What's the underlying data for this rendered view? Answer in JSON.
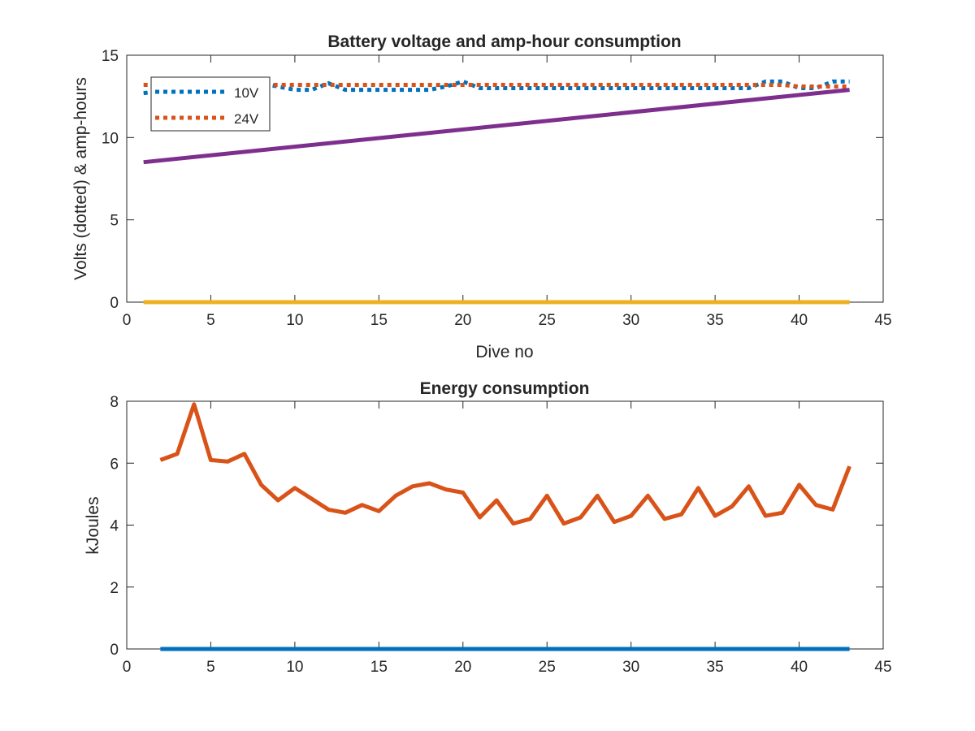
{
  "chart_data": [
    {
      "type": "line",
      "title": "Battery voltage and amp-hour consumption",
      "xlabel": "Dive no",
      "ylabel": "Volts (dotted) & amp-hours",
      "xlim": [
        0,
        45
      ],
      "ylim": [
        0,
        15
      ],
      "xticks": [
        "0",
        "5",
        "10",
        "15",
        "20",
        "25",
        "30",
        "35",
        "40",
        "45"
      ],
      "yticks": [
        "0",
        "5",
        "10",
        "15"
      ],
      "legend_position": "top-left",
      "series": [
        {
          "name": "10V",
          "style": "dotted",
          "color": "#0072BD",
          "x": [
            1,
            2,
            3,
            4,
            5,
            6,
            7,
            8,
            9,
            10,
            11,
            12,
            13,
            14,
            15,
            16,
            17,
            18,
            19,
            20,
            21,
            22,
            23,
            24,
            25,
            26,
            27,
            28,
            29,
            30,
            31,
            32,
            33,
            34,
            35,
            36,
            37,
            38,
            39,
            40,
            41,
            42,
            43
          ],
          "values": [
            12.7,
            12.8,
            12.9,
            13.1,
            13.2,
            13.2,
            13.3,
            13.3,
            13.1,
            12.9,
            12.9,
            13.3,
            12.9,
            12.9,
            12.9,
            12.9,
            12.9,
            12.9,
            13.1,
            13.4,
            13.0,
            13.0,
            13.0,
            13.0,
            13.0,
            13.0,
            13.0,
            13.0,
            13.0,
            13.0,
            13.0,
            13.0,
            13.0,
            13.0,
            13.0,
            13.0,
            13.0,
            13.4,
            13.4,
            13.0,
            13.0,
            13.4,
            13.4
          ]
        },
        {
          "name": "24V",
          "style": "dotted",
          "color": "#D95319",
          "x": [
            1,
            2,
            3,
            4,
            5,
            6,
            7,
            8,
            9,
            10,
            11,
            12,
            13,
            14,
            15,
            16,
            17,
            18,
            19,
            20,
            21,
            22,
            23,
            24,
            25,
            26,
            27,
            28,
            29,
            30,
            31,
            32,
            33,
            34,
            35,
            36,
            37,
            38,
            39,
            40,
            41,
            42,
            43
          ],
          "values": [
            13.2,
            13.2,
            13.2,
            13.2,
            13.2,
            13.2,
            13.2,
            13.2,
            13.2,
            13.2,
            13.2,
            13.2,
            13.2,
            13.2,
            13.2,
            13.2,
            13.2,
            13.2,
            13.2,
            13.2,
            13.2,
            13.2,
            13.2,
            13.2,
            13.2,
            13.2,
            13.2,
            13.2,
            13.2,
            13.2,
            13.2,
            13.2,
            13.2,
            13.2,
            13.2,
            13.2,
            13.2,
            13.2,
            13.2,
            13.1,
            13.1,
            13.1,
            13.1
          ]
        },
        {
          "style": "solid",
          "color": "#7E2F8E",
          "x": [
            1,
            43
          ],
          "values": [
            8.5,
            12.9
          ]
        },
        {
          "style": "solid",
          "color": "#EDB120",
          "x": [
            1,
            43
          ],
          "values": [
            0,
            0
          ]
        }
      ]
    },
    {
      "type": "line",
      "title": "Energy consumption",
      "xlabel": "",
      "ylabel": "kJoules",
      "xlim": [
        0,
        45
      ],
      "ylim": [
        0,
        8
      ],
      "xticks": [
        "0",
        "5",
        "10",
        "15",
        "20",
        "25",
        "30",
        "35",
        "40",
        "45"
      ],
      "yticks": [
        "0",
        "2",
        "4",
        "6",
        "8"
      ],
      "series": [
        {
          "style": "solid",
          "color": "#D95319",
          "x": [
            2,
            3,
            4,
            5,
            6,
            7,
            8,
            9,
            10,
            11,
            12,
            13,
            14,
            15,
            16,
            17,
            18,
            19,
            20,
            21,
            22,
            23,
            24,
            25,
            26,
            27,
            28,
            29,
            30,
            31,
            32,
            33,
            34,
            35,
            36,
            37,
            38,
            39,
            40,
            41,
            42,
            43
          ],
          "values": [
            6.1,
            6.3,
            7.9,
            6.1,
            6.05,
            6.3,
            5.3,
            4.8,
            5.2,
            4.85,
            4.5,
            4.4,
            4.65,
            4.45,
            4.95,
            5.25,
            5.35,
            5.15,
            5.05,
            4.25,
            4.8,
            4.05,
            4.2,
            4.95,
            4.05,
            4.25,
            4.95,
            4.1,
            4.3,
            4.95,
            4.2,
            4.35,
            5.2,
            4.3,
            4.6,
            5.25,
            4.3,
            4.4,
            5.3,
            4.65,
            4.5,
            5.9
          ]
        },
        {
          "style": "solid",
          "color": "#0072BD",
          "x": [
            2,
            43
          ],
          "values": [
            0,
            0
          ]
        }
      ]
    }
  ]
}
